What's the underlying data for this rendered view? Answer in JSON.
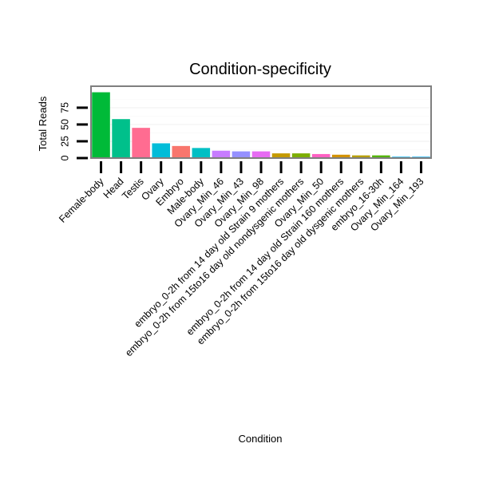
{
  "chart_data": {
    "type": "bar",
    "title": "Condition-specificity",
    "xlabel": "Condition",
    "ylabel": "Total Reads",
    "ylim": [
      0,
      107
    ],
    "yticks": [
      0,
      25,
      50,
      75
    ],
    "legend": "none",
    "grid": true,
    "categories": [
      "Female-body",
      "Head",
      "Testis",
      "Ovary",
      "Embryo",
      "Male-body",
      "Ovary_Min_46",
      "Ovary_Min_43",
      "Ovary_Min_98",
      "embryo_0-2h from 14 day old Strain 9 mothers",
      "embryo_0-2h from 15to16 day old nondysgenic mothers",
      "Ovary_Min_50",
      "embryo_0-2h from 14 day old Strain 160 mothers",
      "embryo_0-2h from 15to16 day old dysgenic mothers",
      "embryo_16-30h",
      "Ovary_Min_164",
      "Ovary_Min_193"
    ],
    "values": [
      98,
      58,
      45,
      22,
      18,
      15,
      11,
      10,
      10,
      7,
      7,
      6,
      5,
      4,
      4,
      2,
      2
    ],
    "colors": [
      "#00BA38",
      "#00C08B",
      "#FF6C91",
      "#00BCD8",
      "#F8766D",
      "#00BFC4",
      "#C77CFF",
      "#9590FF",
      "#E76BF3",
      "#C49A00",
      "#7CAE00",
      "#FF61C3",
      "#D39200",
      "#B79F00",
      "#53B400",
      "#00B0F6",
      "#00ABFD"
    ]
  }
}
